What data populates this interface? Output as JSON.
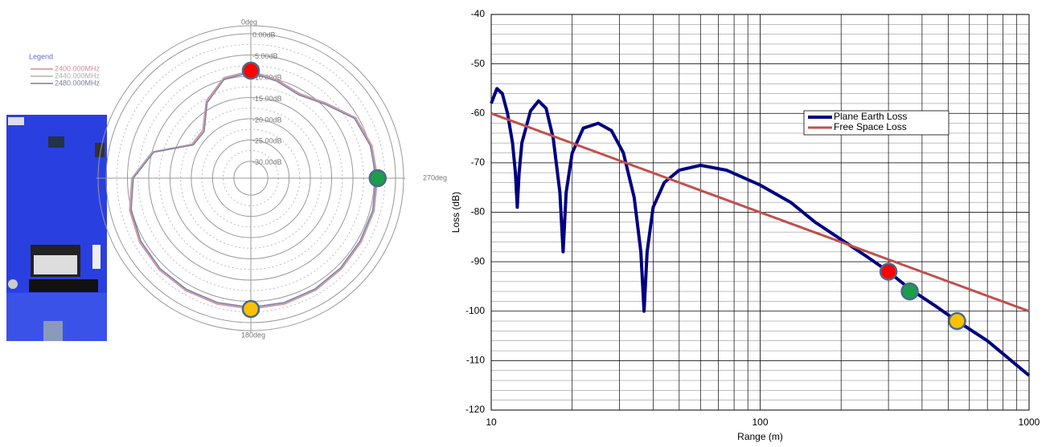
{
  "chart_data": [
    {
      "type": "polar",
      "legend_title": "Legend",
      "angles": [
        0,
        15,
        30,
        45,
        60,
        75,
        90,
        105,
        120,
        135,
        150,
        165,
        180,
        195,
        210,
        225,
        240,
        255,
        270,
        285,
        300,
        315,
        330,
        345
      ],
      "rlim": [
        -34,
        0
      ],
      "rticks": [
        {
          "value": 0,
          "label": "0.00dB"
        },
        {
          "value": -5,
          "label": "-5.00dB"
        },
        {
          "value": -10,
          "label": "-10.00dB"
        },
        {
          "value": -15,
          "label": "-15.00dB"
        },
        {
          "value": -20,
          "label": "-20.00dB"
        },
        {
          "value": -25,
          "label": "-25.00dB"
        },
        {
          "value": -30,
          "label": "-30.00dB"
        }
      ],
      "angle_labels": [
        {
          "value": 0,
          "label": "0deg"
        },
        {
          "value": 270,
          "label": "270deg"
        },
        {
          "value": 180,
          "label": "180deg"
        }
      ],
      "series": [
        {
          "name": "2400.000MHz",
          "color": "#d98a9a",
          "values": [
            -8.7,
            -9.5,
            -13,
            -18,
            -18,
            -10,
            -6,
            -4.5,
            -3.8,
            -3.5,
            -3.4,
            -3.3,
            -3.2,
            -3.3,
            -3.5,
            -3.8,
            -4.0,
            -4.0,
            -4.2,
            -4.5,
            -5.5,
            -9,
            -11,
            -10
          ]
        },
        {
          "name": "2440.000MHz",
          "color": "#b0b0b0",
          "values": [
            -8.9,
            -9.7,
            -13.3,
            -18.3,
            -18.2,
            -10.2,
            -6.2,
            -4.7,
            -4.0,
            -3.7,
            -3.6,
            -3.5,
            -3.4,
            -3.5,
            -3.7,
            -4.0,
            -4.2,
            -4.2,
            -4.4,
            -4.7,
            -5.7,
            -9.2,
            -11.2,
            -10.2
          ]
        },
        {
          "name": "2480.000MHz",
          "color": "#7a7aa8",
          "values": [
            -9.1,
            -9.9,
            -13.5,
            -18.5,
            -18.4,
            -10.4,
            -6.4,
            -4.9,
            -4.2,
            -3.9,
            -3.8,
            -3.7,
            -3.6,
            -3.7,
            -3.9,
            -4.2,
            -4.4,
            -4.4,
            -4.6,
            -4.9,
            -5.9,
            -9.4,
            -11.4,
            -10.4
          ]
        }
      ],
      "points": [
        {
          "angle": 0,
          "value": -8.7,
          "color": "#ff0000"
        },
        {
          "angle": 270,
          "value": -4.2,
          "color": "#1a9e4a"
        },
        {
          "angle": 180,
          "value": -3.2,
          "color": "#ffc000"
        }
      ]
    },
    {
      "type": "line",
      "xlabel": "Range (m)",
      "ylabel": "Loss (dB)",
      "xscale": "log",
      "xlim": [
        10,
        1000
      ],
      "xticks": [
        10,
        100,
        1000
      ],
      "ylim": [
        -120,
        -40
      ],
      "yticks": [
        -120,
        -110,
        -100,
        -90,
        -80,
        -70,
        -60,
        -50,
        -40
      ],
      "grid": true,
      "series": [
        {
          "name": "Plane Earth Loss",
          "color": "#00007f",
          "x": [
            10,
            10.5,
            11,
            11.5,
            12,
            12.3,
            12.5,
            12.7,
            13,
            14,
            15,
            16,
            17,
            18,
            18.5,
            19,
            20,
            22,
            25,
            28,
            31,
            34,
            36,
            37,
            38,
            40,
            44,
            50,
            60,
            75,
            100,
            130,
            160,
            200,
            250,
            300,
            360,
            450,
            540,
            700,
            1000
          ],
          "values": [
            -58,
            -55,
            -56,
            -60,
            -66,
            -72,
            -79,
            -72,
            -66,
            -59.5,
            -57.5,
            -59,
            -65,
            -76,
            -88,
            -76,
            -68,
            -63,
            -62,
            -63.5,
            -68,
            -77,
            -88,
            -100,
            -88,
            -79,
            -74,
            -71.5,
            -70.5,
            -71.5,
            -74.5,
            -78,
            -82,
            -85.5,
            -89,
            -92,
            -95.5,
            -99,
            -102,
            -106,
            -113
          ]
        },
        {
          "name": "Free Space Loss",
          "color": "#c0504d",
          "x": [
            10,
            1000
          ],
          "values": [
            -60,
            -100
          ]
        }
      ],
      "points": [
        {
          "x": 300,
          "value": -92,
          "color": "#ff0000"
        },
        {
          "x": 360,
          "value": -96,
          "color": "#1a9e4a"
        },
        {
          "x": 540,
          "value": -102,
          "color": "#ffc000"
        }
      ]
    }
  ]
}
